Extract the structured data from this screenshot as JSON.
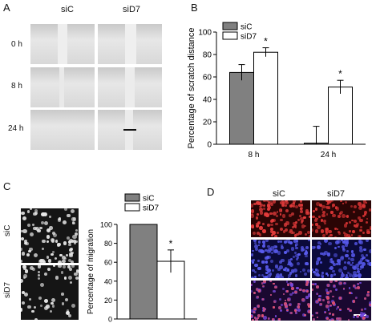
{
  "panels": {
    "A": {
      "letter": "A",
      "columns": [
        "siC",
        "siD7"
      ],
      "rows": [
        "0 h",
        "8 h",
        "24 h"
      ]
    },
    "B": {
      "letter": "B"
    },
    "C": {
      "letter": "C",
      "row_labels": [
        "siC",
        "siD7"
      ]
    },
    "D": {
      "letter": "D",
      "columns": [
        "siC",
        "siD7"
      ]
    }
  },
  "chart_data": [
    {
      "type": "bar",
      "panel": "B",
      "title": "",
      "xlabel": "",
      "ylabel": "Percentage of scratch distance",
      "categories": [
        "8 h",
        "24 h"
      ],
      "ylim": [
        0,
        100
      ],
      "yticks": [
        0,
        20,
        40,
        60,
        80,
        100
      ],
      "legend": "top-left",
      "series": [
        {
          "name": "siC",
          "values": [
            64,
            1
          ],
          "errors": [
            7,
            15
          ],
          "color": "#808080"
        },
        {
          "name": "siD7",
          "values": [
            82,
            51
          ],
          "errors": [
            4,
            6
          ],
          "color": "#ffffff"
        }
      ],
      "annotations": [
        {
          "text": "*",
          "category": "8 h",
          "series": "siD7"
        },
        {
          "text": "*",
          "category": "24 h",
          "series": "siD7"
        }
      ]
    },
    {
      "type": "bar",
      "panel": "C",
      "title": "",
      "xlabel": "",
      "ylabel": "Percentage of migration",
      "categories": [
        ""
      ],
      "ylim": [
        0,
        100
      ],
      "yticks": [
        0,
        20,
        40,
        60,
        80,
        100
      ],
      "legend": "top",
      "series": [
        {
          "name": "siC",
          "values": [
            100
          ],
          "errors": [
            0
          ],
          "color": "#808080"
        },
        {
          "name": "siD7",
          "values": [
            61
          ],
          "errors": [
            12
          ],
          "color": "#ffffff"
        }
      ],
      "annotations": [
        {
          "text": "*",
          "category": "",
          "series": "siD7"
        }
      ]
    }
  ]
}
